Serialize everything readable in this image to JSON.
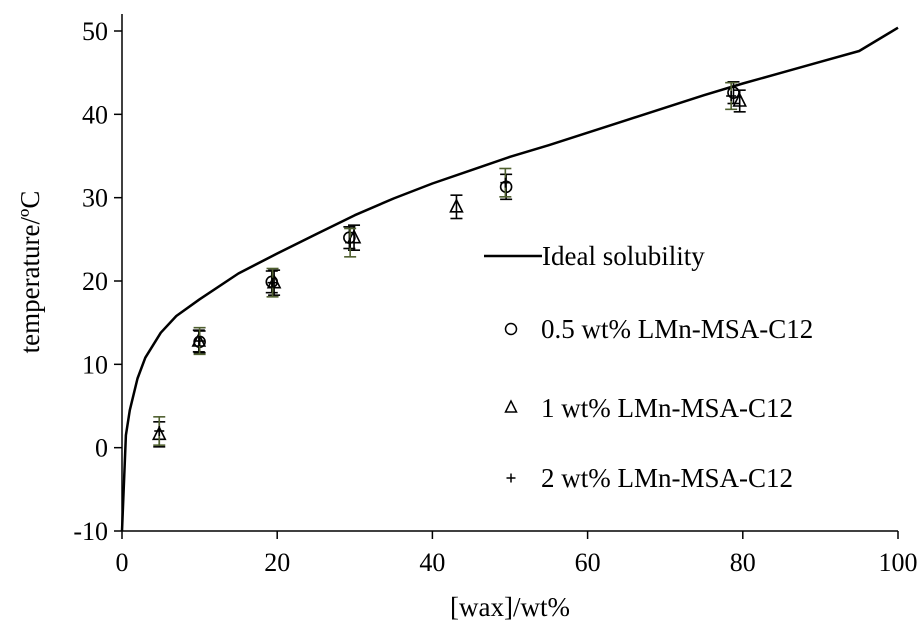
{
  "chart_data": {
    "type": "scatter",
    "xlabel": "[wax]/wt%",
    "ylabel": "temperature/ºC",
    "xlim": [
      0,
      100
    ],
    "ylim": [
      -10,
      50
    ],
    "x_ticks": [
      "0",
      "20",
      "40",
      "60",
      "80",
      "100"
    ],
    "y_ticks": [
      "-10",
      "0",
      "10",
      "20",
      "30",
      "40",
      "50"
    ],
    "grid": false,
    "legend_position": "right",
    "ideal_solubility": {
      "name": "Ideal solubility",
      "x": [
        0,
        0.5,
        1,
        2,
        3,
        5,
        7,
        10,
        15,
        20,
        25,
        30,
        35,
        40,
        45,
        50,
        55,
        60,
        65,
        70,
        75,
        80,
        85,
        90,
        95,
        100
      ],
      "y": [
        -10,
        1.5,
        4.5,
        8.3,
        10.8,
        13.8,
        15.8,
        17.8,
        20.9,
        23.3,
        25.6,
        27.9,
        29.9,
        31.7,
        33.3,
        34.9,
        36.3,
        37.8,
        39.3,
        40.8,
        42.3,
        43.7,
        45.0,
        46.3,
        47.6,
        50.4
      ]
    },
    "series": [
      {
        "name": "0.5 wt% LMn-MSA-C12",
        "marker": "circle",
        "x": [
          10,
          19.3,
          29.3,
          49.5,
          78.8
        ],
        "y": [
          12.7,
          19.9,
          25.2,
          31.3,
          42.6
        ],
        "error": [
          1.3,
          1.3,
          1.3,
          1.5,
          1.3
        ]
      },
      {
        "name": "1 wt% LMn-MSA-C12",
        "marker": "triangle",
        "x": [
          4.8,
          9.9,
          19.6,
          29.9,
          43.1,
          79.6
        ],
        "y": [
          1.6,
          12.8,
          19.8,
          25.2,
          28.9,
          41.6
        ],
        "error": [
          1.5,
          1.3,
          1.5,
          1.5,
          1.4,
          1.3
        ]
      },
      {
        "name": "2 wt% LMn-MSA-C12",
        "marker": "plus",
        "x": [
          4.8,
          10,
          19.4,
          29.4,
          49.4,
          78.5
        ],
        "y": [
          2.0,
          12.8,
          19.8,
          24.6,
          31.8,
          42.2
        ],
        "error": [
          1.7,
          1.6,
          1.7,
          1.7,
          1.7,
          1.6
        ]
      }
    ]
  }
}
